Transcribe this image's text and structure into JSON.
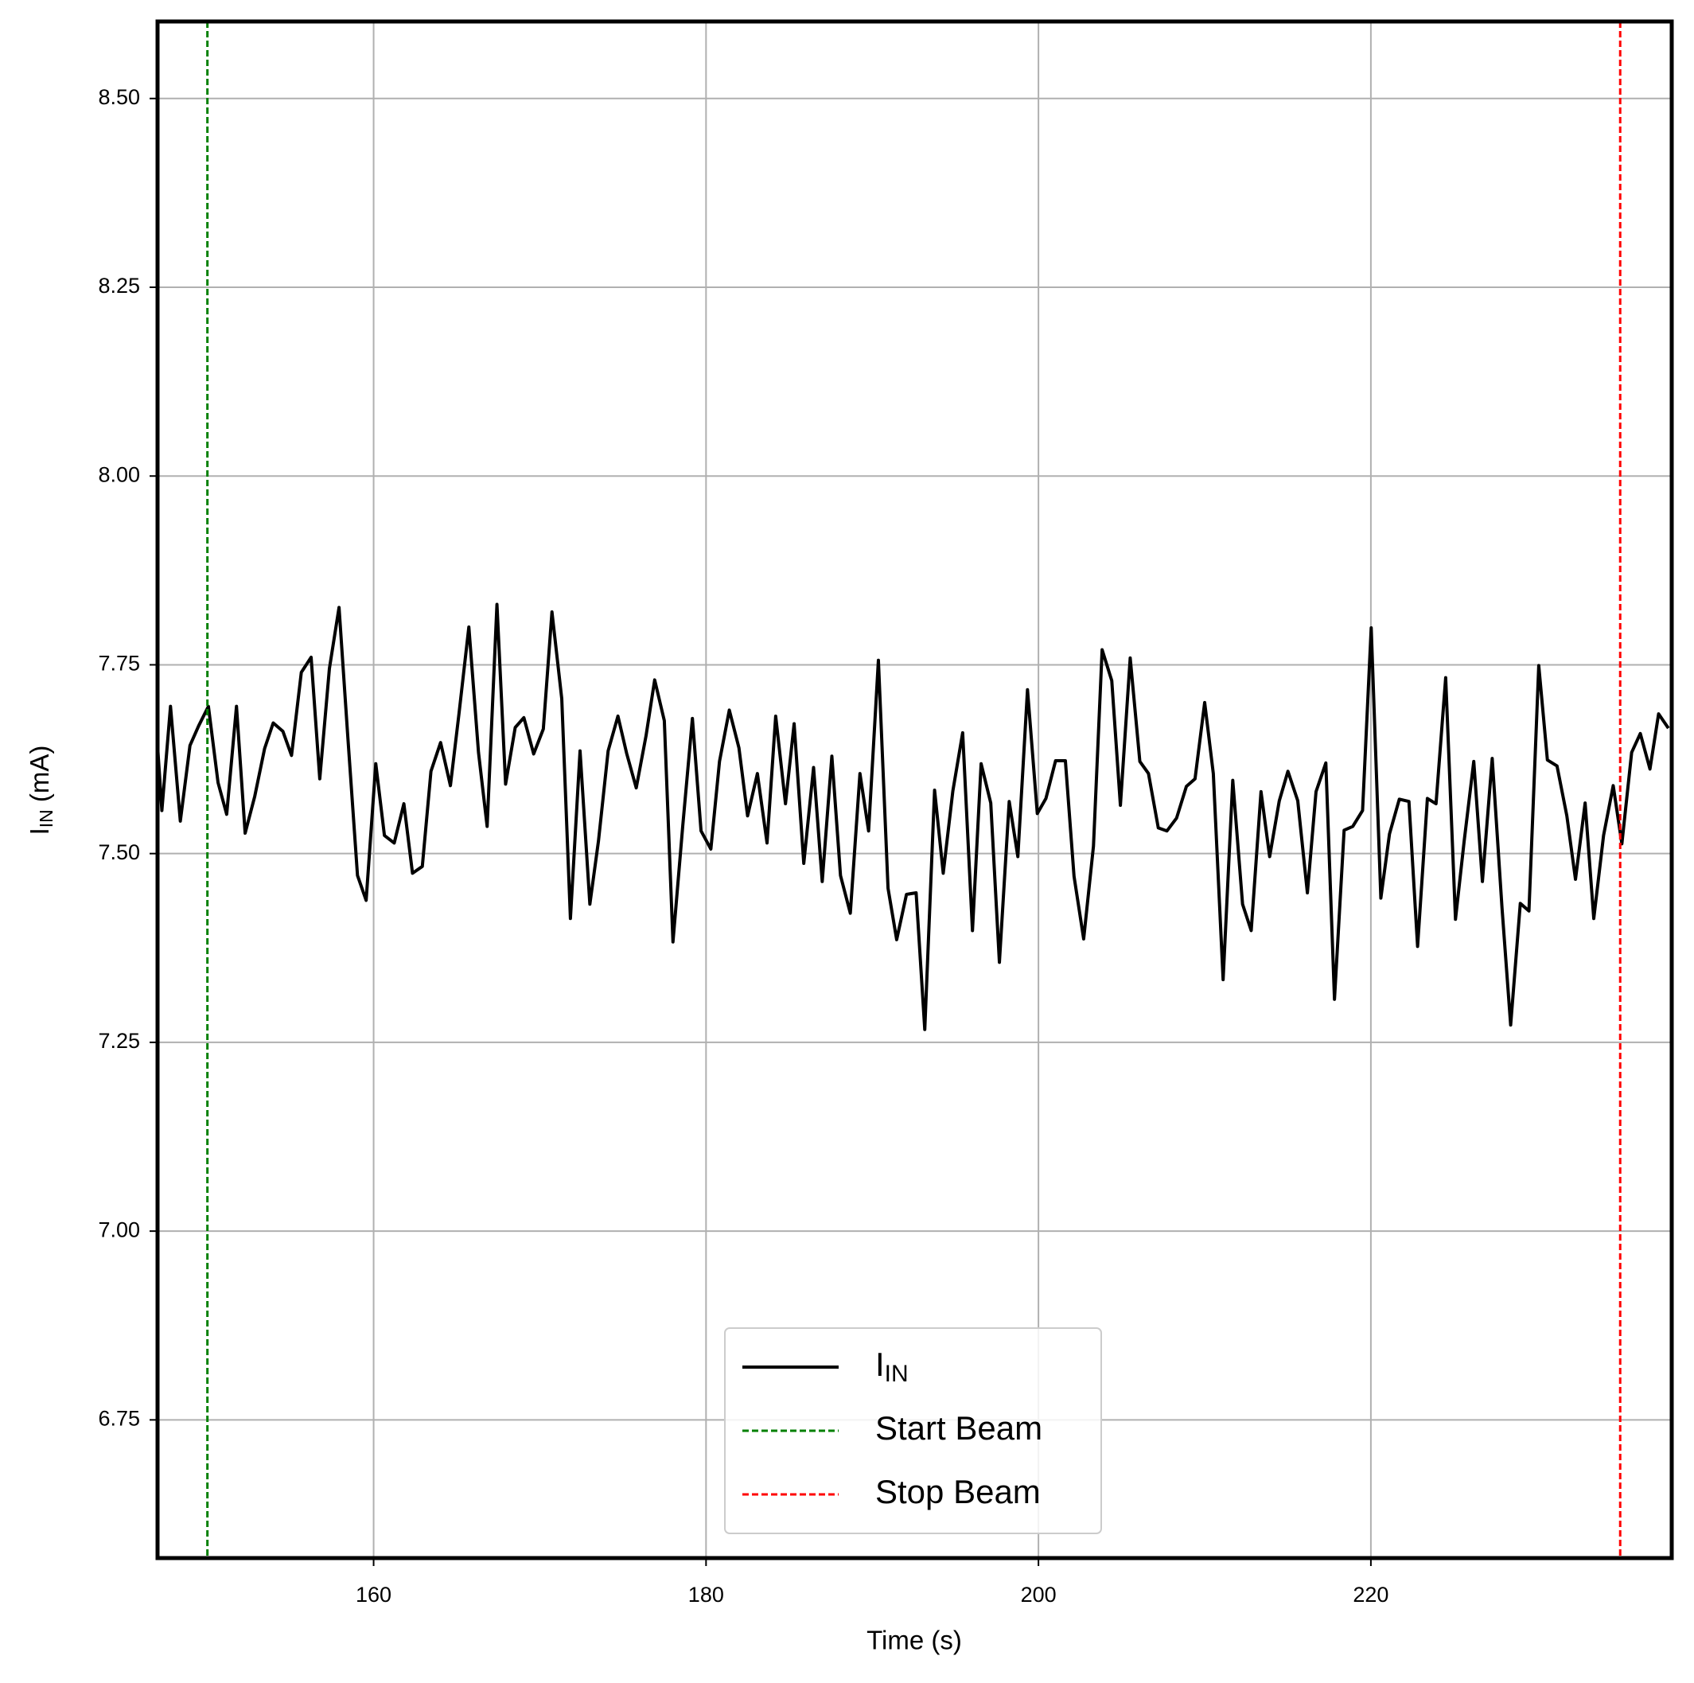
{
  "chart_data": {
    "type": "line",
    "xlabel": "Time (s)",
    "ylabel": [
      "I",
      "IN",
      " (mA)"
    ],
    "xlim": [
      147.0,
      238.1
    ],
    "ylim": [
      6.567,
      8.602
    ],
    "xticks": [
      160,
      180,
      200,
      220
    ],
    "yticks": [
      {
        "value": 6.75,
        "label": "6.75"
      },
      {
        "value": 7.0,
        "label": "7.00"
      },
      {
        "value": 7.25,
        "label": "7.25"
      },
      {
        "value": 7.5,
        "label": "7.50"
      },
      {
        "value": 7.75,
        "label": "7.75"
      },
      {
        "value": 8.0,
        "label": "8.00"
      },
      {
        "value": 8.25,
        "label": "8.25"
      },
      {
        "value": 8.5,
        "label": "8.50"
      }
    ],
    "grid": true,
    "legend": "lower center",
    "series": [
      {
        "name": [
          "I",
          "IN"
        ],
        "color": "#000000",
        "x": [
          147.0,
          147.26,
          147.78,
          148.37,
          148.95,
          149.47,
          150.06,
          150.64,
          151.16,
          151.75,
          152.27,
          152.85,
          153.44,
          153.96,
          154.54,
          155.06,
          155.65,
          156.24,
          156.76,
          157.34,
          157.92,
          158.44,
          159.03,
          159.55,
          160.13,
          160.65,
          161.24,
          161.82,
          162.34,
          162.93,
          163.45,
          164.03,
          164.62,
          165.14,
          165.73,
          166.31,
          166.83,
          167.42,
          167.94,
          168.52,
          169.04,
          169.63,
          170.21,
          170.73,
          171.32,
          171.84,
          172.42,
          173.01,
          173.53,
          174.11,
          174.7,
          175.22,
          175.8,
          176.39,
          176.91,
          177.49,
          178.01,
          178.6,
          179.18,
          179.7,
          180.29,
          180.81,
          181.4,
          181.98,
          182.5,
          183.09,
          183.67,
          184.19,
          184.78,
          185.3,
          185.88,
          186.47,
          186.99,
          187.57,
          188.09,
          188.68,
          189.26,
          189.78,
          190.37,
          190.95,
          191.47,
          192.06,
          192.64,
          193.16,
          193.75,
          194.27,
          194.85,
          195.44,
          196.03,
          196.55,
          197.13,
          197.65,
          198.24,
          198.76,
          199.34,
          199.93,
          200.45,
          201.03,
          201.62,
          202.14,
          202.72,
          203.31,
          203.83,
          204.41,
          204.93,
          205.52,
          206.1,
          206.62,
          207.21,
          207.73,
          208.31,
          208.9,
          209.42,
          210.0,
          210.52,
          211.11,
          211.69,
          212.28,
          212.8,
          213.39,
          213.91,
          214.49,
          215.01,
          215.6,
          216.18,
          216.7,
          217.29,
          217.81,
          218.39,
          218.91,
          219.5,
          220.02,
          220.6,
          221.12,
          221.71,
          222.29,
          222.81,
          223.4,
          223.92,
          224.5,
          225.09,
          225.61,
          226.19,
          226.71,
          227.3,
          227.89,
          228.41,
          228.99,
          229.51,
          230.1,
          230.62,
          231.2,
          231.79,
          232.31,
          232.89,
          233.41,
          234.0,
          234.58,
          235.1,
          235.69,
          236.21,
          236.79,
          237.31,
          237.9
        ],
        "values": [
          7.643,
          7.557,
          7.695,
          7.543,
          7.643,
          7.669,
          7.695,
          7.594,
          7.552,
          7.695,
          7.527,
          7.576,
          7.639,
          7.673,
          7.662,
          7.63,
          7.74,
          7.76,
          7.599,
          7.745,
          7.826,
          7.657,
          7.471,
          7.438,
          7.619,
          7.524,
          7.514,
          7.566,
          7.474,
          7.483,
          7.609,
          7.647,
          7.59,
          7.686,
          7.8,
          7.634,
          7.536,
          7.83,
          7.592,
          7.667,
          7.68,
          7.632,
          7.665,
          7.82,
          7.705,
          7.414,
          7.636,
          7.433,
          7.517,
          7.636,
          7.682,
          7.633,
          7.587,
          7.656,
          7.73,
          7.676,
          7.383,
          7.537,
          7.679,
          7.53,
          7.506,
          7.622,
          7.69,
          7.64,
          7.55,
          7.606,
          7.514,
          7.682,
          7.566,
          7.672,
          7.487,
          7.614,
          7.463,
          7.629,
          7.471,
          7.421,
          7.606,
          7.53,
          7.756,
          7.454,
          7.386,
          7.446,
          7.448,
          7.267,
          7.584,
          7.474,
          7.583,
          7.66,
          7.398,
          7.619,
          7.567,
          7.356,
          7.569,
          7.496,
          7.717,
          7.553,
          7.573,
          7.623,
          7.623,
          7.47,
          7.387,
          7.51,
          7.77,
          7.729,
          7.564,
          7.759,
          7.622,
          7.606,
          7.534,
          7.53,
          7.547,
          7.589,
          7.599,
          7.7,
          7.606,
          7.333,
          7.597,
          7.433,
          7.398,
          7.582,
          7.496,
          7.57,
          7.609,
          7.57,
          7.448,
          7.582,
          7.62,
          7.307,
          7.531,
          7.536,
          7.557,
          7.799,
          7.441,
          7.526,
          7.572,
          7.569,
          7.377,
          7.573,
          7.566,
          7.733,
          7.413,
          7.516,
          7.622,
          7.463,
          7.626,
          7.428,
          7.273,
          7.434,
          7.424,
          7.749,
          7.624,
          7.616,
          7.55,
          7.466,
          7.567,
          7.414,
          7.524,
          7.59,
          7.513,
          7.634,
          7.659,
          7.612,
          7.685,
          7.666
        ]
      }
    ],
    "vlines": [
      {
        "name": "Start Beam",
        "color": "#008000",
        "x": 150
      },
      {
        "name": "Stop Beam",
        "color": "#ff0000",
        "x": 235
      }
    ]
  }
}
